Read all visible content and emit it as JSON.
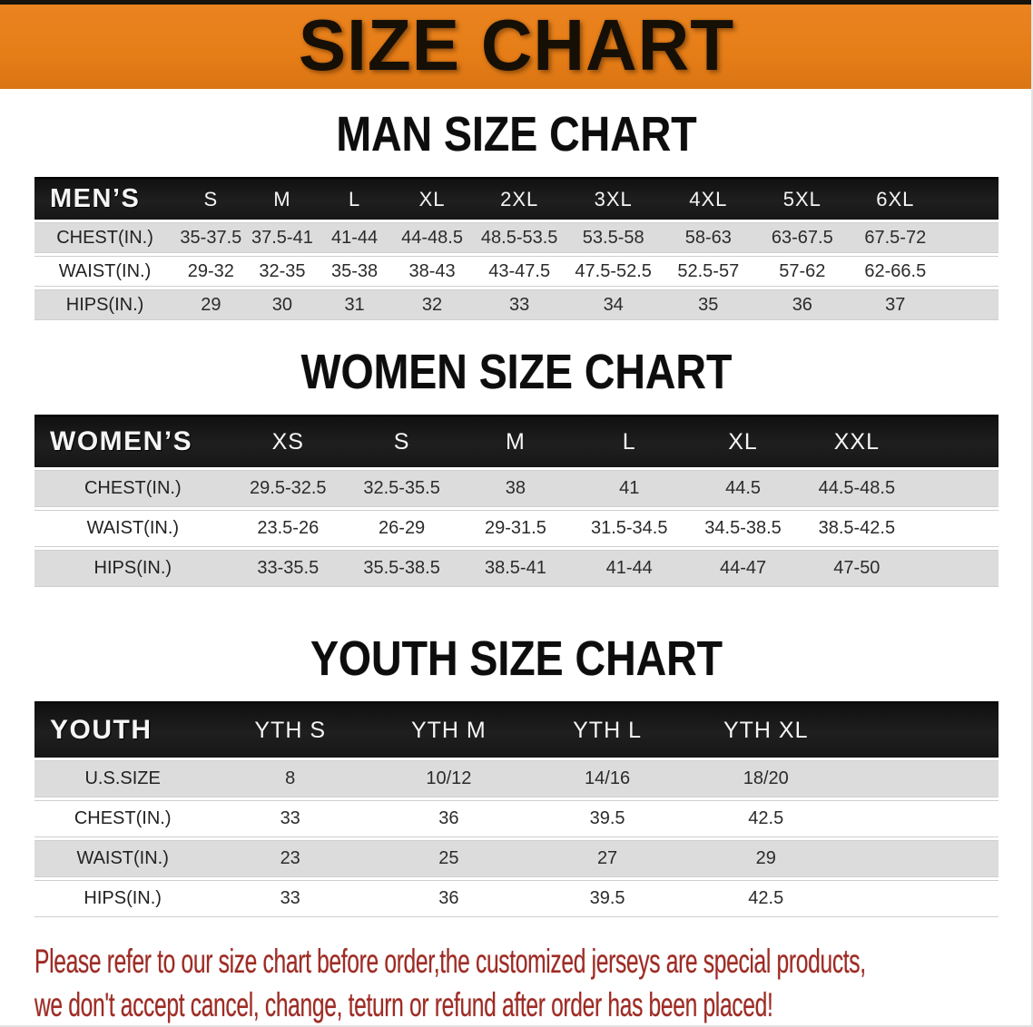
{
  "banner": {
    "title": "SIZE CHART"
  },
  "colors": {
    "banner_bg": "#e67d17",
    "banner_top_strip": "#18120c",
    "table_header_bg": "#171717",
    "row_gray": "#dcdcdc",
    "disclaimer_red": "#9e2b24"
  },
  "sections": [
    {
      "title": "MAN SIZE CHART",
      "group_label": "MEN’S",
      "columns": [
        "S",
        "M",
        "L",
        "XL",
        "2XL",
        "3XL",
        "4XL",
        "5XL",
        "6XL"
      ],
      "rows": [
        {
          "label": "CHEST(IN.)",
          "values": [
            "35-37.5",
            "37.5-41",
            "41-44",
            "44-48.5",
            "48.5-53.5",
            "53.5-58",
            "58-63",
            "63-67.5",
            "67.5-72"
          ]
        },
        {
          "label": "WAIST(IN.)",
          "values": [
            "29-32",
            "32-35",
            "35-38",
            "38-43",
            "43-47.5",
            "47.5-52.5",
            "52.5-57",
            "57-62",
            "62-66.5"
          ]
        },
        {
          "label": "HIPS(IN.)",
          "values": [
            "29",
            "30",
            "31",
            "32",
            "33",
            "34",
            "35",
            "36",
            "37"
          ]
        }
      ]
    },
    {
      "title": "WOMEN SIZE CHART",
      "group_label": "WOMEN’S",
      "columns": [
        "XS",
        "S",
        "M",
        "L",
        "XL",
        "XXL"
      ],
      "rows": [
        {
          "label": "CHEST(IN.)",
          "values": [
            "29.5-32.5",
            "32.5-35.5",
            "38",
            "41",
            "44.5",
            "44.5-48.5"
          ]
        },
        {
          "label": "WAIST(IN.)",
          "values": [
            "23.5-26",
            "26-29",
            "29-31.5",
            "31.5-34.5",
            "34.5-38.5",
            "38.5-42.5"
          ]
        },
        {
          "label": "HIPS(IN.)",
          "values": [
            "33-35.5",
            "35.5-38.5",
            "38.5-41",
            "41-44",
            "44-47",
            "47-50"
          ]
        }
      ]
    },
    {
      "title": "YOUTH SIZE CHART",
      "group_label": "YOUTH",
      "columns": [
        "YTH S",
        "YTH M",
        "YTH L",
        "YTH XL"
      ],
      "rows": [
        {
          "label": "U.S.SIZE",
          "values": [
            "8",
            "10/12",
            "14/16",
            "18/20"
          ]
        },
        {
          "label": "CHEST(IN.)",
          "values": [
            "33",
            "36",
            "39.5",
            "42.5"
          ]
        },
        {
          "label": "WAIST(IN.)",
          "values": [
            "23",
            "25",
            "27",
            "29"
          ]
        },
        {
          "label": "HIPS(IN.)",
          "values": [
            "33",
            "36",
            "39.5",
            "42.5"
          ]
        }
      ]
    }
  ],
  "footer": {
    "line1": "Please refer to our size chart before order,the customized jerseys are special products,",
    "line2": "we don't accept cancel, change, teturn or refund after order has been placed!"
  }
}
